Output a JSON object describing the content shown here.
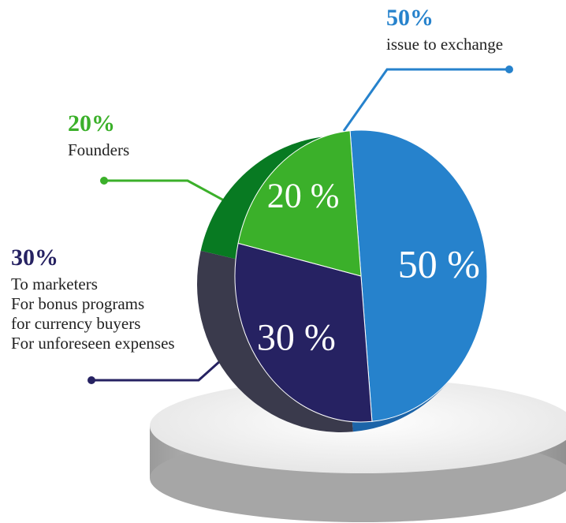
{
  "chart_data": {
    "type": "pie",
    "title": "",
    "slices": [
      {
        "value": 50,
        "slice_label": "50 %",
        "legend_percent": "50%",
        "legend_lines": [
          "issue to exchange"
        ],
        "color": "#2682cc",
        "side_color": "#1c64a8"
      },
      {
        "value": 30,
        "slice_label": "30 %",
        "legend_percent": "30%",
        "legend_lines": [
          "To marketers",
          "For bonus programs",
          "for currency buyers",
          "For unforeseen expenses"
        ],
        "color": "#262262",
        "side_color": "#3a3a4c"
      },
      {
        "value": 20,
        "slice_label": "20 %",
        "legend_percent": "20%",
        "legend_lines": [
          "Founders"
        ],
        "color": "#3bb02a",
        "side_color": "#087a22"
      }
    ]
  }
}
